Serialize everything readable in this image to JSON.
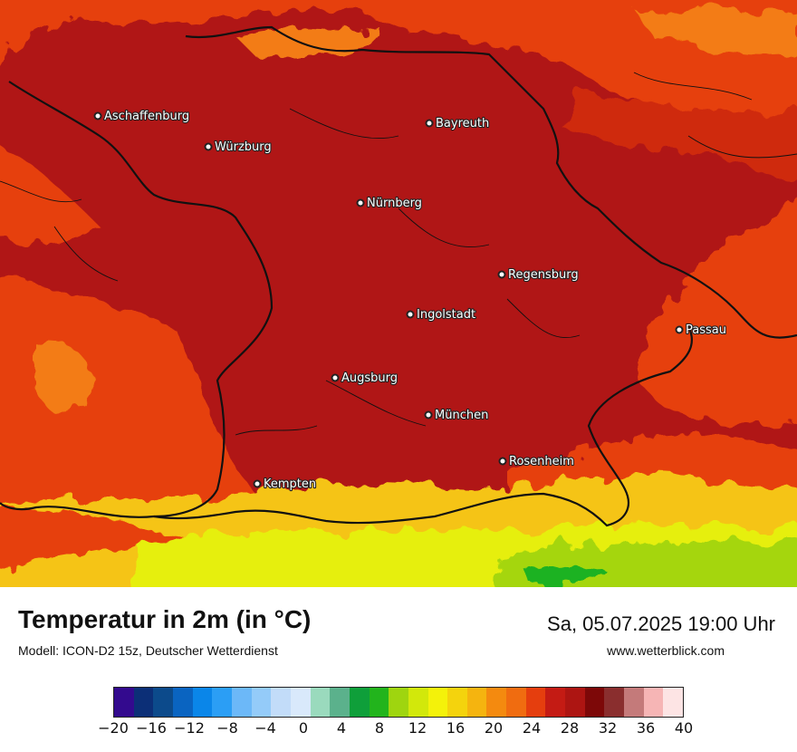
{
  "map": {
    "cities": [
      {
        "name": "Aschaffenburg"
      },
      {
        "name": "Bayreuth"
      },
      {
        "name": "Würzburg"
      },
      {
        "name": "Nürnberg"
      },
      {
        "name": "Regensburg"
      },
      {
        "name": "Ingolstadt"
      },
      {
        "name": "Passau"
      },
      {
        "name": "Augsburg"
      },
      {
        "name": "München"
      },
      {
        "name": "Rosenheim"
      },
      {
        "name": "Kempten"
      }
    ],
    "field_colors": {
      "hot_dark": "#b01515",
      "hot": "#cf2a10",
      "warm": "#e6400c",
      "warm_light": "#f37c12",
      "mild": "#f5c414",
      "cool": "#e6ef0a",
      "green_light": "#a5d610",
      "green": "#1bb223"
    }
  },
  "footer": {
    "title": "Temperatur in 2m (in °C)",
    "subtitle": "Modell: ICON-D2 15z, Deutscher Wetterdienst",
    "datetime": "Sa, 05.07.2025 19:00 Uhr",
    "website": "www.wetterblick.com"
  },
  "legend": {
    "colors": [
      "#330a8e",
      "#0c2f77",
      "#0c4a8b",
      "#0a64c1",
      "#0a86e9",
      "#2b9ef5",
      "#6cb8f8",
      "#94cbf9",
      "#c2dcf9",
      "#d9e9fb",
      "#9adabd",
      "#5bb18c",
      "#0f9f3a",
      "#22b41c",
      "#9fd50f",
      "#d2e80b",
      "#f4f20a",
      "#f4d30d",
      "#f5b40f",
      "#f48a0f",
      "#f06c10",
      "#e53e0e",
      "#c41b14",
      "#ad1512",
      "#7d0808",
      "#8a2e2e",
      "#c47a7a",
      "#f6b5b5",
      "#fde4e4"
    ],
    "tick_labels": [
      "−20",
      "−16",
      "−12",
      "−8",
      "−4",
      "0",
      "4",
      "8",
      "12",
      "16",
      "20",
      "24",
      "28",
      "32",
      "36",
      "40"
    ],
    "range": [
      -20,
      40
    ]
  }
}
